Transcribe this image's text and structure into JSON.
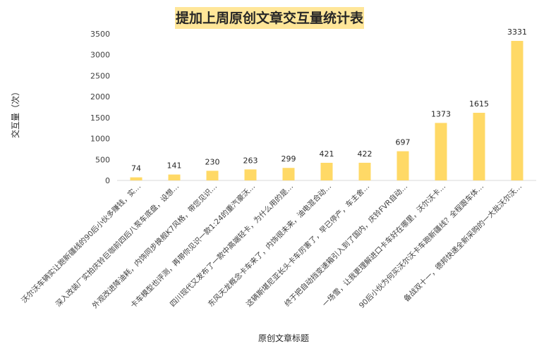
{
  "chart_data": {
    "type": "bar",
    "title": "提加上周原创文章交互量统计表",
    "xlabel": "原创文章标题",
    "ylabel": "交互量（次）",
    "ylim": [
      0,
      3500
    ],
    "yticks": [
      0,
      500,
      1000,
      1500,
      2000,
      2500,
      3000,
      3500
    ],
    "grid": false,
    "legend": "none",
    "bar_color": "#ffd966",
    "title_bg_color": "#ffe699",
    "categories": [
      "沃尔沃车辆实让跑新疆线的90后小伙多赚钱，实…",
      "深入改装厂实拍庆铃巨咖前四后八泵车底盘，设想…",
      "外观改进降油耗，内饰同步换舰K7风格，带您见识…",
      "卡车模型也评测，再带你见识一款1:24的重汽豪沃…",
      "四川现代又发布了一款中高端轻卡，为什么用的是…",
      "东风天龙概念卡车来了，内饰很未来，油电混合动…",
      "这辆斯堪尼亚长头卡车厉害了，早已停产，车主舍…",
      "终于把自动挡变速箱引入到了国内，庆铃FVR自动…",
      "一场雪，让我更理解进口卡车好在哪里，沃尔沃卡…",
      "90后小伙为何买沃尔沃卡车跑新疆线？全程跟车体…",
      "备战双十一，德邦快递全新采购的一大批沃尔沃…"
    ],
    "values": [
      74,
      141,
      230,
      263,
      299,
      421,
      422,
      697,
      1373,
      1615,
      3331
    ]
  }
}
